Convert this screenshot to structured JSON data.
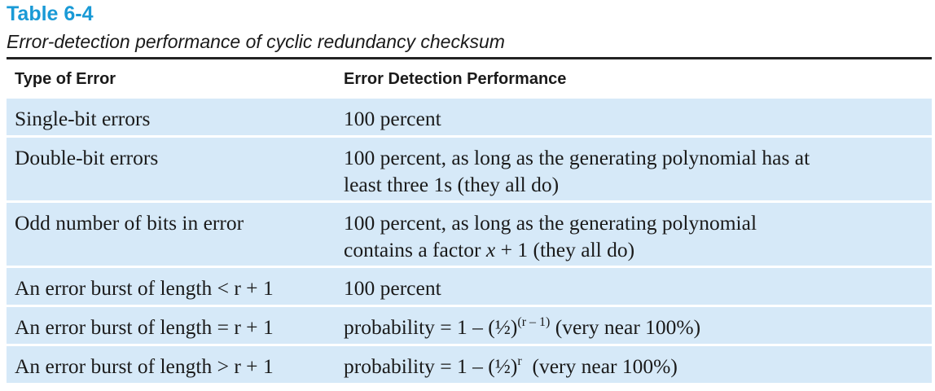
{
  "table": {
    "label": "Table 6-4",
    "caption": "Error-detection performance of cyclic redundancy checksum",
    "headers": [
      "Type of Error",
      "Error Detection Performance"
    ],
    "rows": [
      {
        "type": "Single-bit errors",
        "performance_lines": [
          "100 percent"
        ]
      },
      {
        "type": "Double-bit errors",
        "performance_lines": [
          "100 percent, as long as the generating polynomial has at",
          "least three 1s (they all do)"
        ]
      },
      {
        "type": "Odd number of bits in error",
        "performance_lines": [
          "100 percent, as long as the generating polynomial",
          "contains a factor x + 1 (they all do)"
        ],
        "line2_parts": {
          "before": "contains a factor ",
          "var": "x",
          "after": " + 1 (they all do)"
        }
      },
      {
        "type": "An error burst of length < r + 1",
        "performance_lines": [
          "100 percent"
        ]
      },
      {
        "type": "An error burst of length = r + 1",
        "performance_parts": {
          "before": "probability = 1 – (½)",
          "sup": "(r – 1)",
          "after": " (very near 100%)"
        }
      },
      {
        "type": "An error burst of length > r + 1",
        "performance_parts": {
          "before": "probability = 1 – (½)",
          "sup": "r",
          "after": "  (very near 100%)"
        }
      }
    ]
  }
}
